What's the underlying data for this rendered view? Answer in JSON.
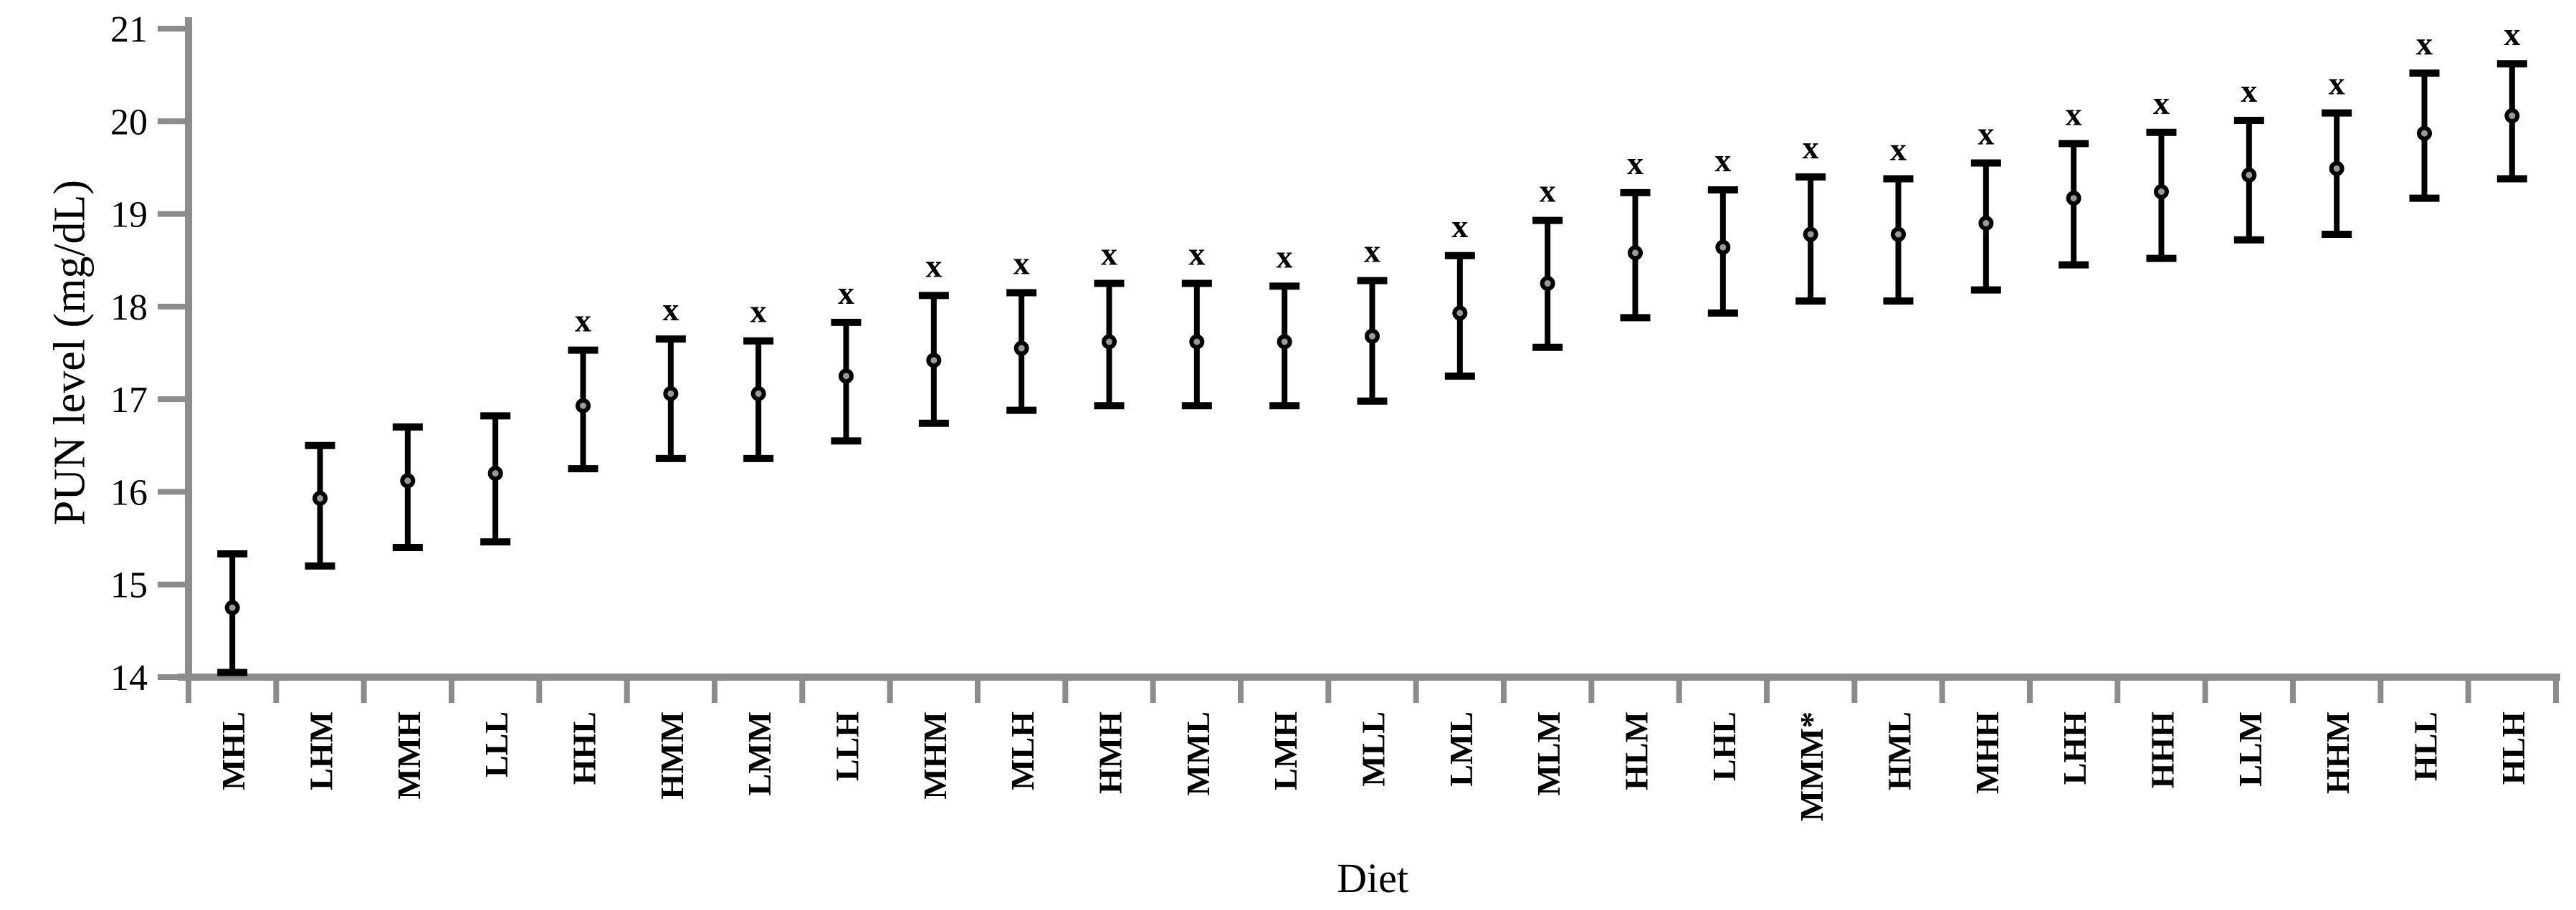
{
  "chart_data": {
    "type": "scatter",
    "title": "",
    "xlabel": "Diet",
    "ylabel": "PUN level (mg/dL)",
    "ylim": [
      14,
      21
    ],
    "yticks": [
      14,
      15,
      16,
      17,
      18,
      19,
      20,
      21
    ],
    "grid": false,
    "legend": false,
    "error_bars": true,
    "significance_marker": "x",
    "points": [
      {
        "diet": "MHL",
        "mean": 14.75,
        "lo": 14.05,
        "hi": 15.33,
        "sig": ""
      },
      {
        "diet": "LHM",
        "mean": 15.93,
        "lo": 15.2,
        "hi": 16.5,
        "sig": ""
      },
      {
        "diet": "MMH",
        "mean": 16.12,
        "lo": 15.4,
        "hi": 16.7,
        "sig": ""
      },
      {
        "diet": "LLL",
        "mean": 16.2,
        "lo": 15.46,
        "hi": 16.82,
        "sig": ""
      },
      {
        "diet": "HHL",
        "mean": 16.93,
        "lo": 16.25,
        "hi": 17.53,
        "sig": "x"
      },
      {
        "diet": "HMM",
        "mean": 17.06,
        "lo": 16.36,
        "hi": 17.65,
        "sig": "x"
      },
      {
        "diet": "LMM",
        "mean": 17.06,
        "lo": 16.36,
        "hi": 17.63,
        "sig": "x"
      },
      {
        "diet": "LLH",
        "mean": 17.25,
        "lo": 16.55,
        "hi": 17.83,
        "sig": "x"
      },
      {
        "diet": "MHM",
        "mean": 17.42,
        "lo": 16.74,
        "hi": 18.12,
        "sig": "x"
      },
      {
        "diet": "MLH",
        "mean": 17.55,
        "lo": 16.88,
        "hi": 18.15,
        "sig": "x"
      },
      {
        "diet": "HMH",
        "mean": 17.62,
        "lo": 16.93,
        "hi": 18.25,
        "sig": "x"
      },
      {
        "diet": "MML",
        "mean": 17.62,
        "lo": 16.93,
        "hi": 18.25,
        "sig": "x"
      },
      {
        "diet": "LMH",
        "mean": 17.62,
        "lo": 16.93,
        "hi": 18.22,
        "sig": "x"
      },
      {
        "diet": "MLL",
        "mean": 17.68,
        "lo": 16.98,
        "hi": 18.28,
        "sig": "x"
      },
      {
        "diet": "LML",
        "mean": 17.93,
        "lo": 17.25,
        "hi": 18.55,
        "sig": "x"
      },
      {
        "diet": "MLM",
        "mean": 18.25,
        "lo": 17.56,
        "hi": 18.93,
        "sig": "x"
      },
      {
        "diet": "HLM",
        "mean": 18.58,
        "lo": 17.88,
        "hi": 19.23,
        "sig": "x"
      },
      {
        "diet": "LHL",
        "mean": 18.64,
        "lo": 17.93,
        "hi": 19.26,
        "sig": "x"
      },
      {
        "diet": "MMM*",
        "mean": 18.78,
        "lo": 18.06,
        "hi": 19.4,
        "sig": "x"
      },
      {
        "diet": "HML",
        "mean": 18.78,
        "lo": 18.06,
        "hi": 19.38,
        "sig": "x"
      },
      {
        "diet": "MHH",
        "mean": 18.9,
        "lo": 18.18,
        "hi": 19.55,
        "sig": "x"
      },
      {
        "diet": "LHH",
        "mean": 19.17,
        "lo": 18.45,
        "hi": 19.76,
        "sig": "x"
      },
      {
        "diet": "HHH",
        "mean": 19.24,
        "lo": 18.52,
        "hi": 19.88,
        "sig": "x"
      },
      {
        "diet": "LLM",
        "mean": 19.42,
        "lo": 18.72,
        "hi": 20.01,
        "sig": "x"
      },
      {
        "diet": "HHM",
        "mean": 19.49,
        "lo": 18.78,
        "hi": 20.09,
        "sig": "x"
      },
      {
        "diet": "HLL",
        "mean": 19.87,
        "lo": 19.17,
        "hi": 20.52,
        "sig": "x"
      },
      {
        "diet": "HLH",
        "mean": 20.06,
        "lo": 19.38,
        "hi": 20.62,
        "sig": "x"
      }
    ],
    "colors": {
      "axis": "#8c8c8c",
      "marks": "#000000",
      "point_fill": "#999999",
      "text": "#000000",
      "background": "#ffffff"
    }
  }
}
